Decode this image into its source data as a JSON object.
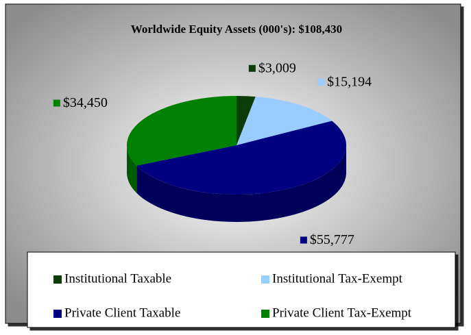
{
  "chart_data": {
    "type": "pie3d",
    "title": "Worldwide Equity Assets (000's):   $108,430",
    "categories": [
      "Institutional Taxable",
      "Institutional Tax-Exempt",
      "Private Client Taxable",
      "Private Client Tax-Exempt"
    ],
    "values": [
      3009,
      15194,
      55777,
      34450
    ],
    "value_labels": [
      "$3,009",
      "$15,194",
      "$55,777",
      "$34,450"
    ],
    "colors": [
      "#0b3d0b",
      "#99ccff",
      "#000080",
      "#008000"
    ],
    "legend": "bottom"
  }
}
